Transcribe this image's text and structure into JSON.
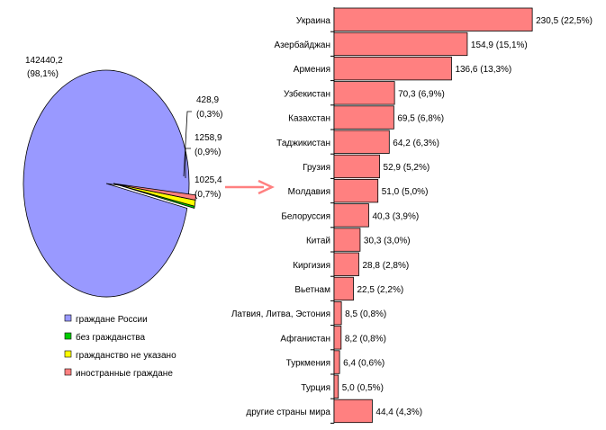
{
  "chart_data": [
    {
      "type": "pie",
      "slices": [
        {
          "name": "граждане России",
          "value": 142440.2,
          "label_value": "142440,2",
          "label_pct": "(98,1%)",
          "color": "#9999ff"
        },
        {
          "name": "без гражданства",
          "value": 428.9,
          "label_value": "428,9",
          "label_pct": "(0,3%)",
          "color": "#00cc00"
        },
        {
          "name": "гражданство не указано",
          "value": 1258.9,
          "label_value": "1258,9",
          "label_pct": "(0,9%)",
          "color": "#ffff00"
        },
        {
          "name": "иностранные граждане",
          "value": 1025.4,
          "label_value": "1025,4",
          "label_pct": "(0,7%)",
          "color": "#ff8080"
        }
      ],
      "legend": [
        "граждане России",
        "без гражданства",
        "гражданство не указано",
        "иностранные граждане"
      ],
      "legend_position": "bottom"
    },
    {
      "type": "bar",
      "orientation": "horizontal",
      "color": "#ff8080",
      "categories": [
        "Украина",
        "Азербайджан",
        "Армения",
        "Узбекистан",
        "Казахстан",
        "Таджикистан",
        "Грузия",
        "Молдавия",
        "Белоруссия",
        "Китай",
        "Киргизия",
        "Вьетнам",
        "Латвия, Литва, Эстония",
        "Афганистан",
        "Туркмения",
        "Турция",
        "другие страны мира"
      ],
      "values": [
        230.5,
        154.9,
        136.6,
        70.3,
        69.5,
        64.2,
        52.9,
        51.0,
        40.3,
        30.3,
        28.8,
        22.5,
        8.5,
        8.2,
        6.4,
        5.0,
        44.4
      ],
      "data_labels": [
        "230,5 (22,5%)",
        "154,9 (15,1%)",
        "136,6 (13,3%)",
        "70,3 (6,9%)",
        "69,5 (6,8%)",
        "64,2 (6,3%)",
        "52,9 (5,2%)",
        "51,0 (5,0%)",
        "40,3 (3,9%)",
        "30,3 (3,0%)",
        "28,8 (2,8%)",
        "22,5 (2,2%)",
        "8,5 (0,8%)",
        "8,2 (0,8%)",
        "6,4 (0,6%)",
        "5,0 (0,5%)",
        "44,4 (4,3%)"
      ]
    }
  ],
  "arrow_color": "#ff8080"
}
